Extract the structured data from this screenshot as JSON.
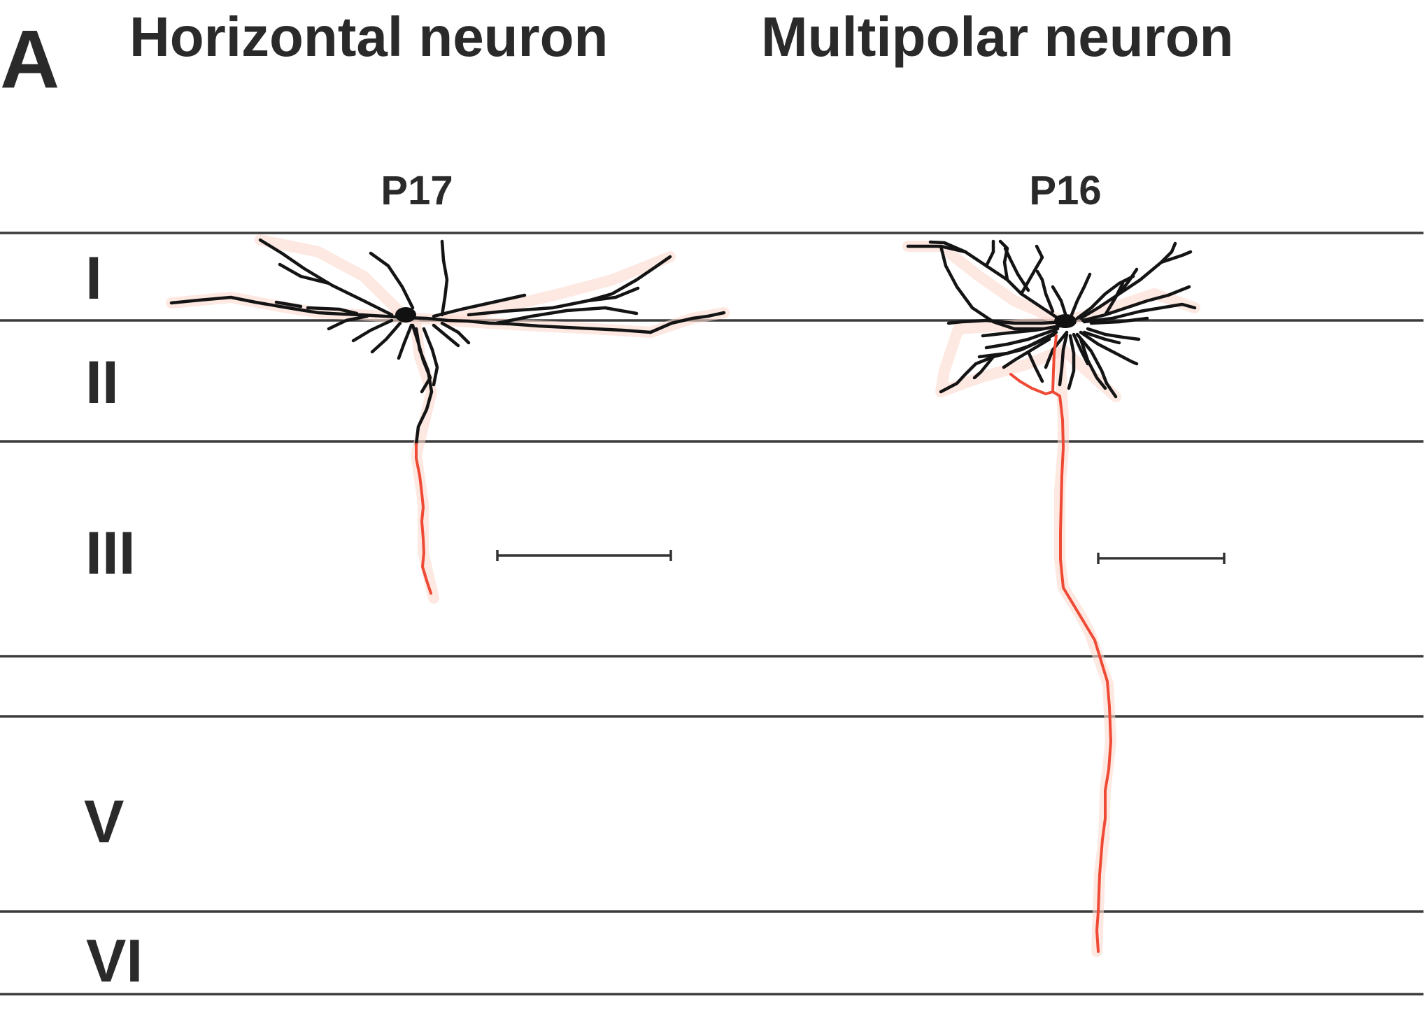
{
  "panel_label": "A",
  "headings": {
    "horizontal": "Horizontal neuron",
    "multipolar": "Multipolar neuron"
  },
  "ages": {
    "horizontal": "P17",
    "multipolar": "P16"
  },
  "layers": [
    "I",
    "II",
    "III",
    "V",
    "VI"
  ],
  "colors": {
    "dendrite": "#141414",
    "axon": "#ee4a35",
    "boundary": "#3b3b3b"
  }
}
